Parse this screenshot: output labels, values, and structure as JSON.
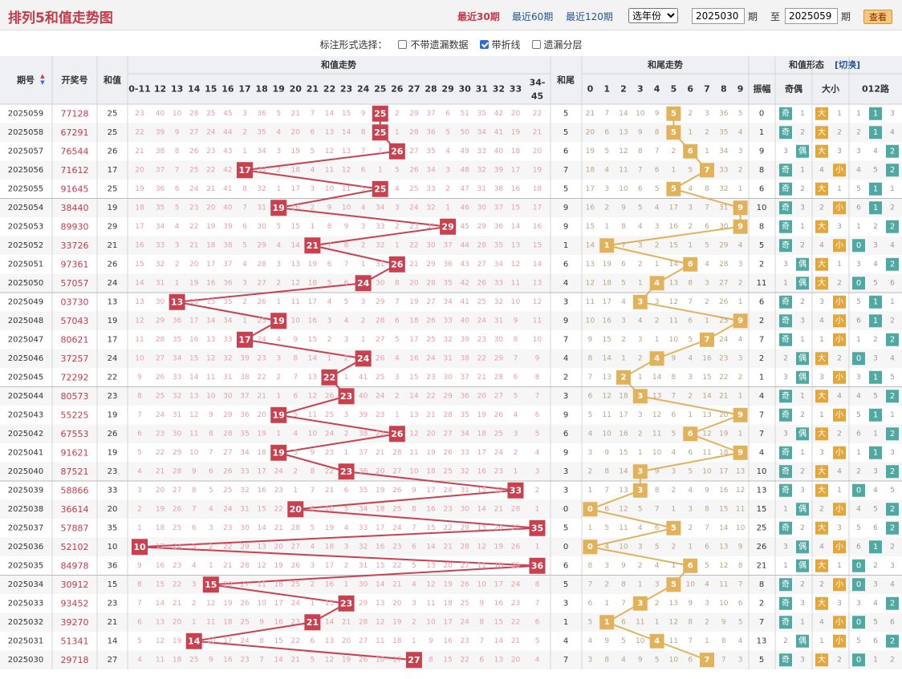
{
  "header": {
    "title": "排列5和值走势图",
    "periods": [
      "最近30期",
      "最近60期",
      "最近120期"
    ],
    "active_period": "最近30期",
    "year_select": "选年份",
    "from_value": "2025030",
    "from_unit": "期",
    "to_label": "至",
    "to_value": "2025059",
    "to_unit": "期",
    "view_button": "查看"
  },
  "options": {
    "label": "标注形式选择：",
    "items": [
      {
        "label": "不带遗漏数据",
        "checked": false
      },
      {
        "label": "带折线",
        "checked": true
      },
      {
        "label": "遗漏分层",
        "checked": false
      }
    ]
  },
  "table": {
    "col_issue": "期号",
    "col_draw": "开奖号",
    "col_sum": "和值",
    "group_sum_trend": "和值走势",
    "sum_cols": [
      "0-11",
      "12",
      "13",
      "14",
      "15",
      "16",
      "17",
      "18",
      "19",
      "20",
      "21",
      "22",
      "23",
      "24",
      "25",
      "26",
      "27",
      "28",
      "29",
      "30",
      "31",
      "32",
      "33",
      "34-45"
    ],
    "col_tail": "和尾",
    "group_tail_trend": "和尾走势",
    "tail_cols": [
      "0",
      "1",
      "2",
      "3",
      "4",
      "5",
      "6",
      "7",
      "8",
      "9"
    ],
    "group_form": "和值形态",
    "switch_label": "[切换]",
    "form_cols": [
      "振幅",
      "奇偶",
      "大小",
      "012路"
    ],
    "odd_label": "奇",
    "even_label": "偶",
    "big_label": "大",
    "small_label": "小"
  },
  "chart_data": {
    "type": "table",
    "rows": [
      {
        "issue": "2025059",
        "draw": "77128",
        "sum": 25,
        "tail": 5,
        "amp": 0,
        "oe": "奇",
        "bs": "大",
        "road": 1
      },
      {
        "issue": "2025058",
        "draw": "67291",
        "sum": 25,
        "tail": 5,
        "amp": 1,
        "oe": "奇",
        "bs": "大",
        "road": 1
      },
      {
        "issue": "2025057",
        "draw": "76544",
        "sum": 26,
        "tail": 6,
        "amp": 9,
        "oe": "偶",
        "bs": "大",
        "road": 2
      },
      {
        "issue": "2025056",
        "draw": "71612",
        "sum": 17,
        "tail": 7,
        "amp": 8,
        "oe": "奇",
        "bs": "小",
        "road": 2
      },
      {
        "issue": "2025055",
        "draw": "91645",
        "sum": 25,
        "tail": 5,
        "amp": 6,
        "oe": "奇",
        "bs": "大",
        "road": 1
      },
      {
        "issue": "2025054",
        "draw": "38440",
        "sum": 19,
        "tail": 9,
        "amp": 10,
        "oe": "奇",
        "bs": "小",
        "road": 1
      },
      {
        "issue": "2025053",
        "draw": "89930",
        "sum": 29,
        "tail": 9,
        "amp": 8,
        "oe": "奇",
        "bs": "大",
        "road": 2
      },
      {
        "issue": "2025052",
        "draw": "33726",
        "sum": 21,
        "tail": 1,
        "amp": 5,
        "oe": "奇",
        "bs": "小",
        "road": 0
      },
      {
        "issue": "2025051",
        "draw": "97361",
        "sum": 26,
        "tail": 6,
        "amp": 2,
        "oe": "偶",
        "bs": "大",
        "road": 2
      },
      {
        "issue": "2025050",
        "draw": "57057",
        "sum": 24,
        "tail": 4,
        "amp": 11,
        "oe": "偶",
        "bs": "大",
        "road": 0
      },
      {
        "issue": "2025049",
        "draw": "03730",
        "sum": 13,
        "tail": 3,
        "amp": 6,
        "oe": "奇",
        "bs": "小",
        "road": 1
      },
      {
        "issue": "2025048",
        "draw": "57043",
        "sum": 19,
        "tail": 9,
        "amp": 2,
        "oe": "奇",
        "bs": "小",
        "road": 1
      },
      {
        "issue": "2025047",
        "draw": "80621",
        "sum": 17,
        "tail": 7,
        "amp": 7,
        "oe": "奇",
        "bs": "小",
        "road": 2
      },
      {
        "issue": "2025046",
        "draw": "37257",
        "sum": 24,
        "tail": 4,
        "amp": 2,
        "oe": "偶",
        "bs": "大",
        "road": 0
      },
      {
        "issue": "2025045",
        "draw": "72292",
        "sum": 22,
        "tail": 2,
        "amp": 1,
        "oe": "偶",
        "bs": "小",
        "road": 1
      },
      {
        "issue": "2025044",
        "draw": "80573",
        "sum": 23,
        "tail": 3,
        "amp": 4,
        "oe": "奇",
        "bs": "大",
        "road": 2
      },
      {
        "issue": "2025043",
        "draw": "55225",
        "sum": 19,
        "tail": 9,
        "amp": 7,
        "oe": "奇",
        "bs": "小",
        "road": 1
      },
      {
        "issue": "2025042",
        "draw": "67553",
        "sum": 26,
        "tail": 6,
        "amp": 7,
        "oe": "偶",
        "bs": "大",
        "road": 2
      },
      {
        "issue": "2025041",
        "draw": "91621",
        "sum": 19,
        "tail": 9,
        "amp": 4,
        "oe": "奇",
        "bs": "小",
        "road": 1
      },
      {
        "issue": "2025040",
        "draw": "87521",
        "sum": 23,
        "tail": 3,
        "amp": 10,
        "oe": "奇",
        "bs": "大",
        "road": 2
      },
      {
        "issue": "2025039",
        "draw": "58866",
        "sum": 33,
        "tail": 3,
        "amp": 13,
        "oe": "奇",
        "bs": "大",
        "road": 0
      },
      {
        "issue": "2025038",
        "draw": "36614",
        "sum": 20,
        "tail": 0,
        "amp": 15,
        "oe": "偶",
        "bs": "小",
        "road": 2
      },
      {
        "issue": "2025037",
        "draw": "57887",
        "sum": 35,
        "tail": 5,
        "amp": 25,
        "oe": "奇",
        "bs": "大",
        "road": 2
      },
      {
        "issue": "2025036",
        "draw": "52102",
        "sum": 10,
        "tail": 0,
        "amp": 26,
        "oe": "偶",
        "bs": "小",
        "road": 1
      },
      {
        "issue": "2025035",
        "draw": "84978",
        "sum": 36,
        "tail": 6,
        "amp": 21,
        "oe": "偶",
        "bs": "大",
        "road": 0
      },
      {
        "issue": "2025034",
        "draw": "30912",
        "sum": 15,
        "tail": 5,
        "amp": 8,
        "oe": "奇",
        "bs": "小",
        "road": 0
      },
      {
        "issue": "2025033",
        "draw": "93452",
        "sum": 23,
        "tail": 3,
        "amp": 2,
        "oe": "奇",
        "bs": "大",
        "road": 2
      },
      {
        "issue": "2025032",
        "draw": "39270",
        "sum": 21,
        "tail": 1,
        "amp": 7,
        "oe": "奇",
        "bs": "小",
        "road": 0
      },
      {
        "issue": "2025031",
        "draw": "51341",
        "sum": 14,
        "tail": 4,
        "amp": 13,
        "oe": "偶",
        "bs": "小",
        "road": 2
      },
      {
        "issue": "2025030",
        "draw": "29718",
        "sum": 27,
        "tail": 7,
        "amp": 5,
        "oe": "奇",
        "bs": "大",
        "road": 0
      }
    ]
  },
  "colors": {
    "accent": "#c63a4a",
    "sum_ball": "#c9404e",
    "tail_ball": "#e2b25b",
    "form_ball": "#4fa8a2",
    "big_small_ball": "#e2a63a",
    "header_bg": "#eef0f4",
    "miss_text": "#e8a0a8",
    "tail_miss_text": "#bba488",
    "link": "#225599"
  }
}
